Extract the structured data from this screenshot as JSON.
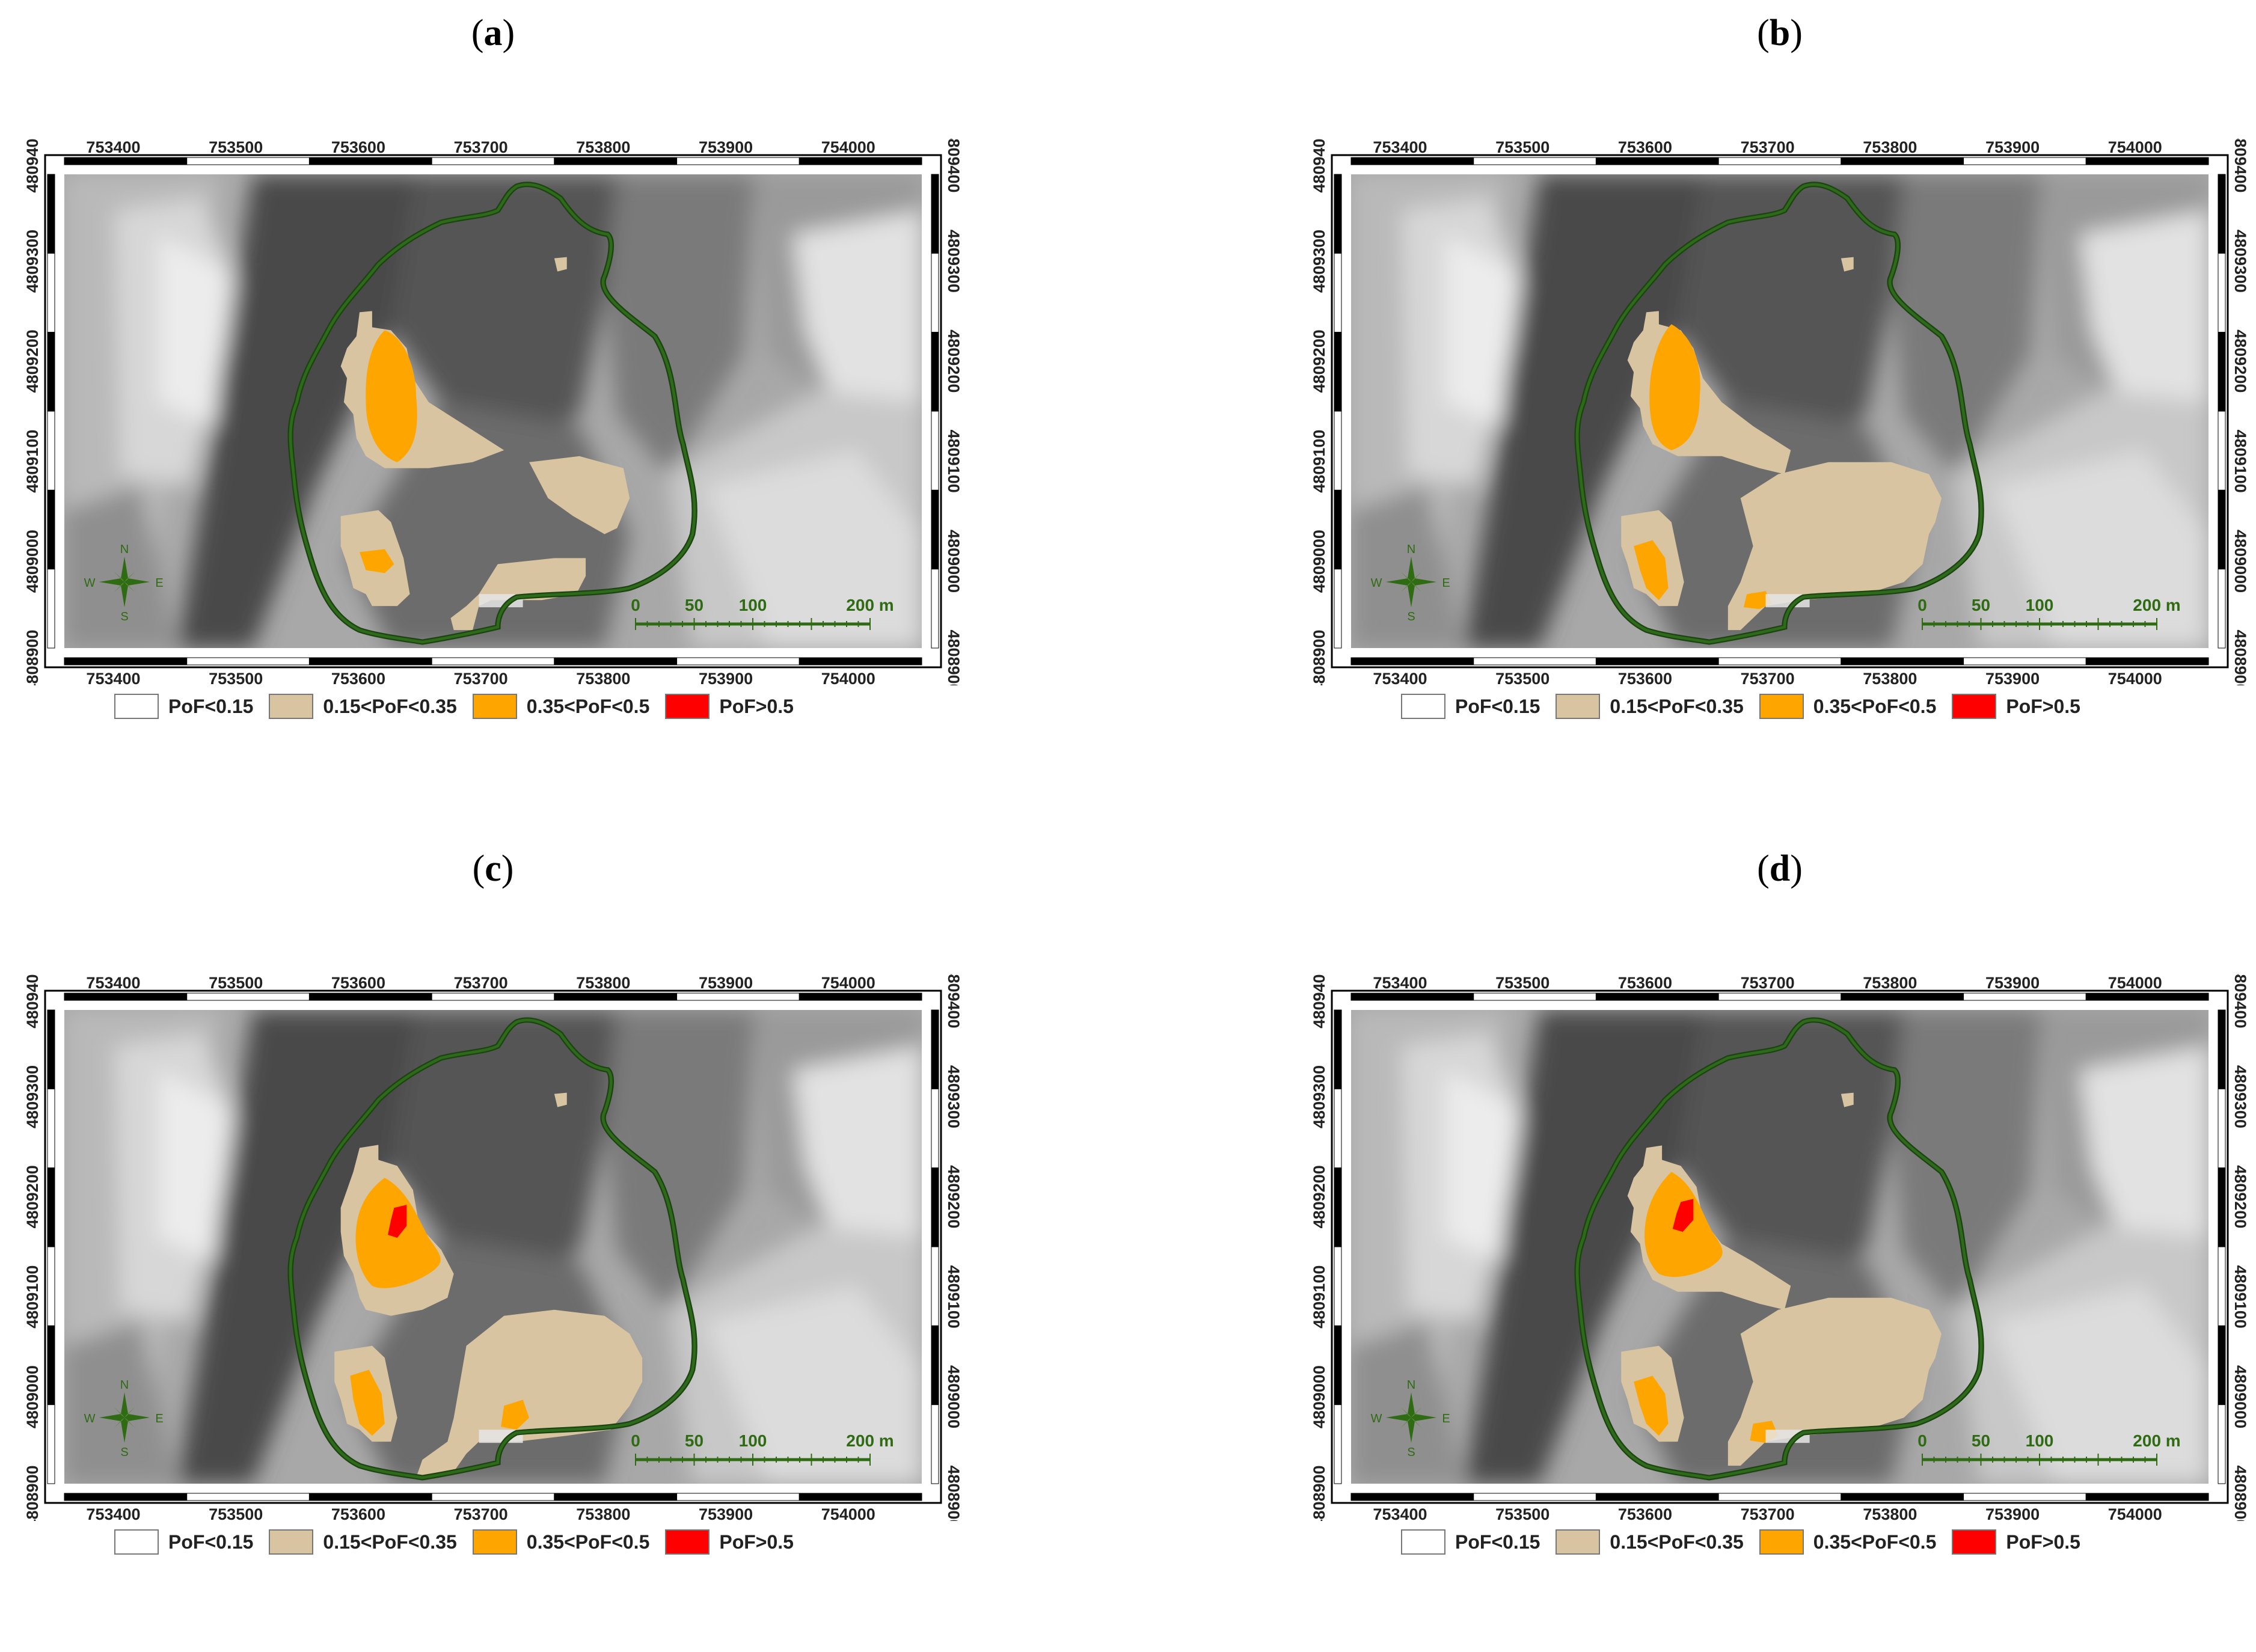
{
  "panels": [
    {
      "label_open": "(",
      "label_letter": "a",
      "label_close": ")",
      "variant": "a"
    },
    {
      "label_open": "(",
      "label_letter": "b",
      "label_close": ")",
      "variant": "b"
    },
    {
      "label_open": "(",
      "label_letter": "c",
      "label_close": ")",
      "variant": "c"
    },
    {
      "label_open": "(",
      "label_letter": "d",
      "label_close": ")",
      "variant": "d"
    }
  ],
  "axes": {
    "x_ticks": [
      "753400",
      "753500",
      "753600",
      "753700",
      "753800",
      "753900",
      "754000"
    ],
    "y_ticks": [
      "4809400",
      "4809300",
      "4809200",
      "4809100",
      "4809000",
      "4808900"
    ]
  },
  "scale_bar": {
    "labels": [
      "0",
      "50",
      "100",
      "200 m"
    ]
  },
  "compass": {
    "n": "N",
    "s": "S",
    "e": "E",
    "w": "W"
  },
  "legend": [
    {
      "label": "PoF<0.15",
      "color": "#ffffff"
    },
    {
      "label": "0.15<PoF<0.35",
      "color": "#d8c4a0"
    },
    {
      "label": "0.35<PoF<0.5",
      "color": "#ffa500"
    },
    {
      "label": "PoF>0.5",
      "color": "#ff0000"
    }
  ],
  "colors": {
    "boundary": "#2d6a1a",
    "low": "#d8c4a0",
    "mid": "#ffa500",
    "high": "#ff0000"
  }
}
